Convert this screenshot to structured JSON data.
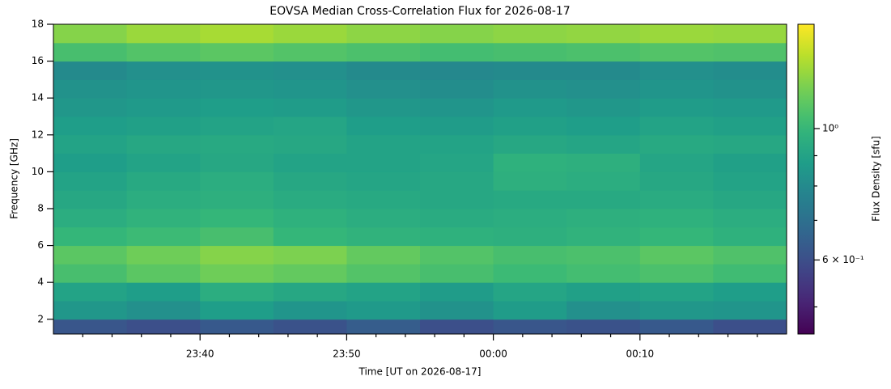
{
  "chart_data": {
    "type": "heatmap",
    "title": "EOVSA Median Cross-Correlation Flux for 2026-08-17",
    "xlabel": "Time [UT on 2026-08-17]",
    "ylabel": "Frequency [GHz]",
    "colorbar_label": "Flux Density [sfu]",
    "colormap": "viridis",
    "color_scale": "log",
    "x_edges": [
      "23:30",
      "23:35",
      "23:40",
      "23:45",
      "23:50",
      "23:55",
      "00:00",
      "00:05",
      "00:10",
      "00:15",
      "00:20"
    ],
    "y_edges": [
      1.2,
      2,
      3,
      4,
      5,
      6,
      7,
      8,
      9,
      10,
      11,
      12,
      13,
      14,
      15,
      16,
      17,
      18
    ],
    "z": [
      [
        0.62,
        0.6,
        0.63,
        0.61,
        0.64,
        0.6,
        0.62,
        0.61,
        0.63,
        0.6
      ],
      [
        0.85,
        0.82,
        0.88,
        0.84,
        0.86,
        0.83,
        0.87,
        0.82,
        0.85,
        0.84
      ],
      [
        0.9,
        0.88,
        0.95,
        0.92,
        0.9,
        0.87,
        0.91,
        0.89,
        0.9,
        0.88
      ],
      [
        1.05,
        1.1,
        1.15,
        1.12,
        1.08,
        1.05,
        1.02,
        1.04,
        1.06,
        1.03
      ],
      [
        1.1,
        1.15,
        1.2,
        1.18,
        1.12,
        1.08,
        1.05,
        1.06,
        1.1,
        1.07
      ],
      [
        1.0,
        1.02,
        1.05,
        1.0,
        0.98,
        0.97,
        0.96,
        0.98,
        1.0,
        0.97
      ],
      [
        0.95,
        0.98,
        1.0,
        0.97,
        0.95,
        0.94,
        0.95,
        0.96,
        0.97,
        0.95
      ],
      [
        0.92,
        0.95,
        0.96,
        0.94,
        0.93,
        0.92,
        0.93,
        0.93,
        0.94,
        0.92
      ],
      [
        0.9,
        0.93,
        0.95,
        0.92,
        0.91,
        0.92,
        0.96,
        0.95,
        0.92,
        0.9
      ],
      [
        0.88,
        0.9,
        0.92,
        0.9,
        0.9,
        0.91,
        0.97,
        0.96,
        0.91,
        0.89
      ],
      [
        0.9,
        0.92,
        0.93,
        0.92,
        0.9,
        0.9,
        0.92,
        0.91,
        0.93,
        0.92
      ],
      [
        0.88,
        0.89,
        0.9,
        0.91,
        0.88,
        0.87,
        0.89,
        0.88,
        0.9,
        0.89
      ],
      [
        0.85,
        0.86,
        0.88,
        0.87,
        0.85,
        0.84,
        0.86,
        0.85,
        0.87,
        0.86
      ],
      [
        0.83,
        0.84,
        0.85,
        0.84,
        0.82,
        0.81,
        0.83,
        0.82,
        0.84,
        0.83
      ],
      [
        0.8,
        0.82,
        0.83,
        0.82,
        0.8,
        0.79,
        0.8,
        0.8,
        0.82,
        0.81
      ],
      [
        1.05,
        1.08,
        1.1,
        1.08,
        1.06,
        1.04,
        1.05,
        1.06,
        1.08,
        1.07
      ],
      [
        1.2,
        1.25,
        1.28,
        1.25,
        1.22,
        1.2,
        1.22,
        1.23,
        1.25,
        1.24
      ]
    ],
    "xlim": [
      "23:30",
      "00:20"
    ],
    "xticks": [
      "23:40",
      "23:50",
      "00:00",
      "00:10"
    ],
    "xticks_minor": [
      "23:32",
      "23:34",
      "23:36",
      "23:38",
      "23:42",
      "23:44",
      "23:46",
      "23:48",
      "23:52",
      "23:54",
      "23:56",
      "23:58",
      "00:02",
      "00:04",
      "00:06",
      "00:08",
      "00:12",
      "00:14",
      "00:16",
      "00:18"
    ],
    "ylim": [
      1.2,
      18
    ],
    "yticks": [
      2,
      4,
      6,
      8,
      10,
      12,
      14,
      16,
      18
    ],
    "clim": [
      0.45,
      1.5
    ],
    "cticks": [
      {
        "value": 1,
        "label": "10⁰"
      },
      {
        "value": 0.6,
        "label": "6 × 10⁻¹"
      }
    ],
    "cticks_minor": [
      0.5,
      0.7,
      0.8,
      0.9
    ]
  }
}
